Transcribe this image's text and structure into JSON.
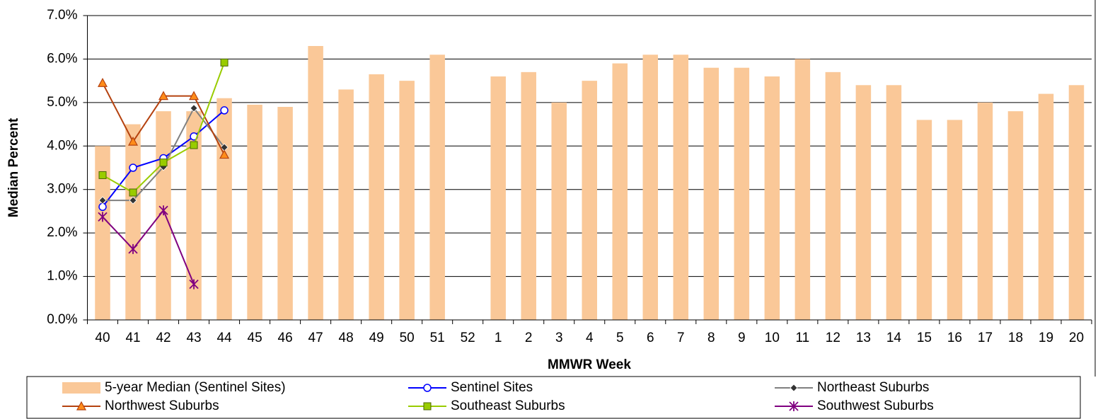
{
  "chart_data": {
    "type": "bar",
    "y_label": "Median Percent",
    "x_label": "MMWR Week",
    "categories": [
      "40",
      "41",
      "42",
      "43",
      "44",
      "45",
      "46",
      "47",
      "48",
      "49",
      "50",
      "51",
      "52",
      "1",
      "2",
      "3",
      "4",
      "5",
      "6",
      "7",
      "8",
      "9",
      "10",
      "11",
      "12",
      "13",
      "14",
      "15",
      "16",
      "17",
      "18",
      "19",
      "20"
    ],
    "ylim": [
      0,
      7
    ],
    "yticks": [
      {
        "value": 0,
        "label": "0.0%"
      },
      {
        "value": 1,
        "label": "1.0%"
      },
      {
        "value": 2,
        "label": "2.0%"
      },
      {
        "value": 3,
        "label": "3.0%"
      },
      {
        "value": 4,
        "label": "4.0%"
      },
      {
        "value": 5,
        "label": "5.0%"
      },
      {
        "value": 6,
        "label": "6.0%"
      },
      {
        "value": 7,
        "label": "7.0%"
      }
    ],
    "grid": true,
    "series": [
      {
        "name": "5-year Median (Sentinel Sites)",
        "type": "bar",
        "color": "#fac898",
        "values": [
          4.0,
          4.5,
          4.8,
          4.8,
          5.1,
          4.95,
          4.9,
          6.3,
          5.3,
          5.65,
          5.5,
          6.1,
          null,
          5.6,
          5.7,
          5.0,
          5.5,
          5.9,
          6.1,
          6.1,
          5.8,
          5.8,
          5.6,
          6.0,
          5.7,
          5.4,
          5.4,
          4.6,
          4.6,
          5.0,
          4.8,
          5.2,
          5.4
        ]
      },
      {
        "name": "Sentinel Sites",
        "type": "line",
        "color": "#0000ff",
        "marker": "circle",
        "values": [
          2.6,
          3.5,
          3.72,
          4.22,
          4.82,
          null,
          null,
          null,
          null,
          null,
          null,
          null,
          null,
          null,
          null,
          null,
          null,
          null,
          null,
          null,
          null,
          null,
          null,
          null,
          null,
          null,
          null,
          null,
          null,
          null,
          null,
          null,
          null
        ]
      },
      {
        "name": "Northeast Suburbs",
        "type": "line",
        "color": "#808080",
        "marker": "diamond",
        "values": [
          2.75,
          2.75,
          3.52,
          4.87,
          3.97,
          null,
          null,
          null,
          null,
          null,
          null,
          null,
          null,
          null,
          null,
          null,
          null,
          null,
          null,
          null,
          null,
          null,
          null,
          null,
          null,
          null,
          null,
          null,
          null,
          null,
          null,
          null,
          null
        ]
      },
      {
        "name": "Northwest Suburbs",
        "type": "line",
        "color": "#b5420f",
        "marker": "triangle",
        "values": [
          5.45,
          4.1,
          5.15,
          5.15,
          3.8,
          null,
          null,
          null,
          null,
          null,
          null,
          null,
          null,
          null,
          null,
          null,
          null,
          null,
          null,
          null,
          null,
          null,
          null,
          null,
          null,
          null,
          null,
          null,
          null,
          null,
          null,
          null,
          null
        ]
      },
      {
        "name": "Southeast Suburbs",
        "type": "line",
        "color": "#99cc00",
        "marker": "square",
        "values": [
          3.33,
          2.93,
          3.62,
          4.02,
          5.92,
          null,
          null,
          null,
          null,
          null,
          null,
          null,
          null,
          null,
          null,
          null,
          null,
          null,
          null,
          null,
          null,
          null,
          null,
          null,
          null,
          null,
          null,
          null,
          null,
          null,
          null,
          null,
          null
        ]
      },
      {
        "name": "Southwest Suburbs",
        "type": "line",
        "color": "#800080",
        "marker": "star",
        "values": [
          2.37,
          1.63,
          2.52,
          0.82,
          null,
          null,
          null,
          null,
          null,
          null,
          null,
          null,
          null,
          null,
          null,
          null,
          null,
          null,
          null,
          null,
          null,
          null,
          null,
          null,
          null,
          null,
          null,
          null,
          null,
          null,
          null,
          null,
          null
        ]
      }
    ]
  }
}
